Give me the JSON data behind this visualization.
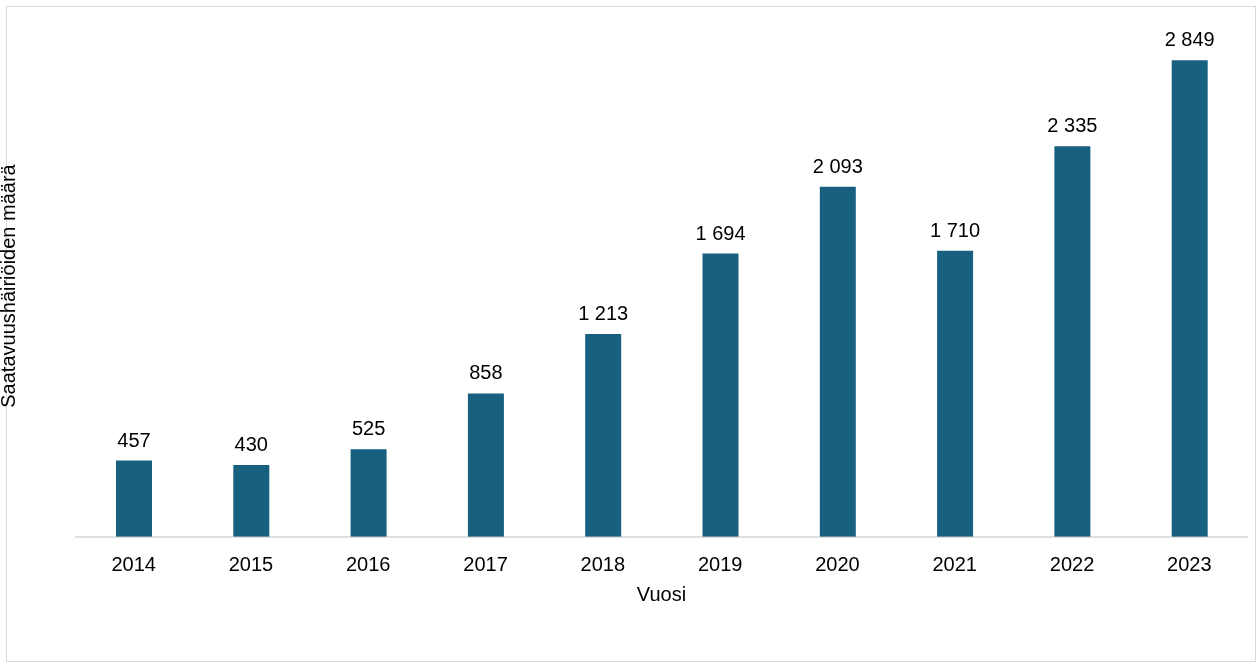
{
  "chart_data": {
    "type": "bar",
    "xlabel": "Vuosi",
    "ylabel": "Saatavuushäiriöiden määrä",
    "categories": [
      "2014",
      "2015",
      "2016",
      "2017",
      "2018",
      "2019",
      "2020",
      "2021",
      "2022",
      "2023"
    ],
    "values": [
      457,
      430,
      525,
      858,
      1213,
      1694,
      2093,
      1710,
      2335,
      2849
    ],
    "value_labels": [
      "457",
      "430",
      "525",
      "858",
      "1 213",
      "1 694",
      "2 093",
      "1 710",
      "2 335",
      "2 849"
    ],
    "color": "#17607f",
    "grid": false,
    "legend": false
  }
}
